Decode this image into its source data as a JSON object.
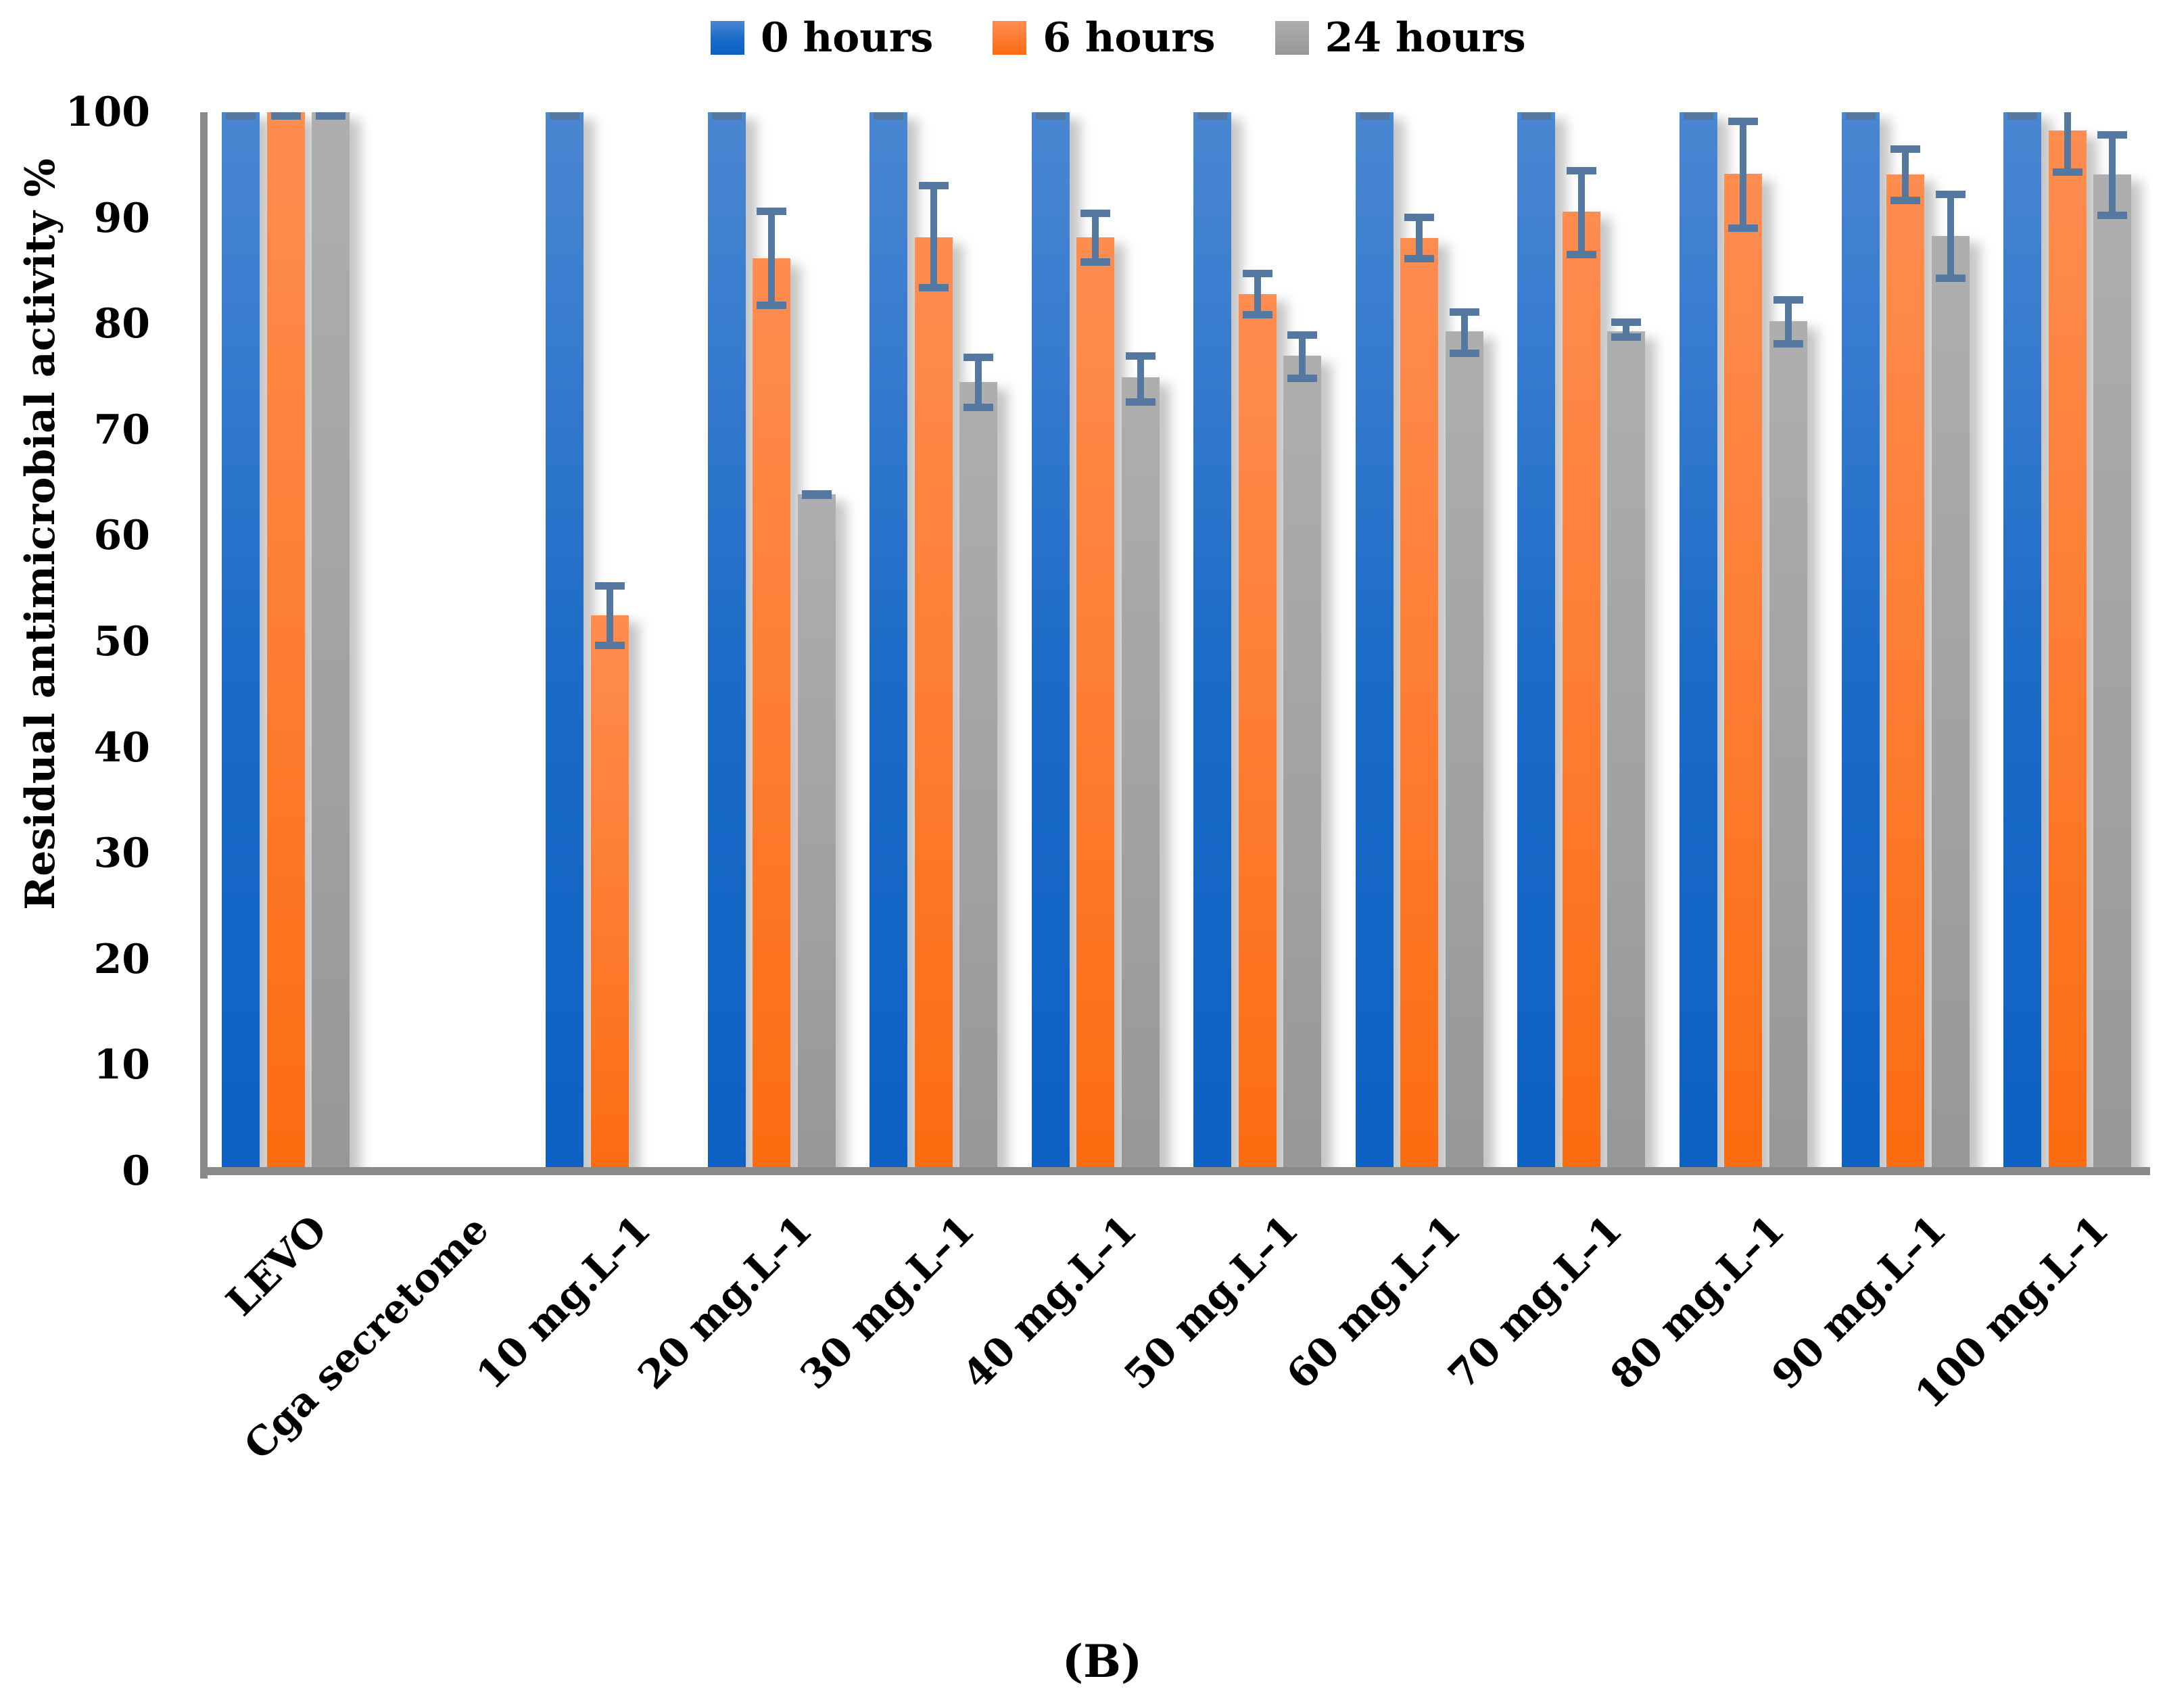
{
  "figure": {
    "caption": "(B)"
  },
  "chart_data": {
    "type": "bar",
    "title": "",
    "xlabel": "",
    "ylabel": "Residual antimicrobial activity %",
    "ylim": [
      0,
      100
    ],
    "yticks": [
      0,
      10,
      20,
      30,
      40,
      50,
      60,
      70,
      80,
      90,
      100
    ],
    "grid": false,
    "legend_position": "top",
    "error_bar_color": "#5578a0",
    "axis_color": "#8a8a8a",
    "categories": [
      "LEVO",
      "Cga secretome",
      "10 mg.L–1",
      "20 mg.L–1",
      "30 mg.L–1",
      "40 mg.L–1",
      "50 mg.L–1",
      "60 mg.L–1",
      "70 mg.L–1",
      "80 mg.L–1",
      "90 mg.L–1",
      "100 mg.L–1"
    ],
    "series": [
      {
        "name": "0 hours",
        "color": "#1e6bc8",
        "values": [
          {
            "v": 100,
            "lo": 0,
            "hi": 0
          },
          null,
          {
            "v": 100,
            "lo": 0,
            "hi": 0
          },
          {
            "v": 100,
            "lo": 0,
            "hi": 0
          },
          {
            "v": 100,
            "lo": 0,
            "hi": 0
          },
          {
            "v": 100,
            "lo": 0,
            "hi": 0
          },
          {
            "v": 100,
            "lo": 0,
            "hi": 0
          },
          {
            "v": 100,
            "lo": 0,
            "hi": 0
          },
          {
            "v": 100,
            "lo": 0,
            "hi": 0
          },
          {
            "v": 100,
            "lo": 0,
            "hi": 0
          },
          {
            "v": 100,
            "lo": 0,
            "hi": 0
          },
          {
            "v": 100,
            "lo": 0,
            "hi": 0
          }
        ]
      },
      {
        "name": "6 hours",
        "color": "#fd7624",
        "values": [
          {
            "v": 100,
            "lo": 0,
            "hi": 0
          },
          null,
          {
            "v": 52.5,
            "lo": 3.2,
            "hi": 3.1
          },
          {
            "v": 86.2,
            "lo": 4.8,
            "hi": 4.8
          },
          {
            "v": 88.2,
            "lo": 5.1,
            "hi": 5.2
          },
          {
            "v": 88.2,
            "lo": 2.7,
            "hi": 2.6
          },
          {
            "v": 82.8,
            "lo": 2.3,
            "hi": 2.3
          },
          {
            "v": 88.1,
            "lo": 2.3,
            "hi": 2.3
          },
          {
            "v": 90.6,
            "lo": 4.4,
            "hi": 4.2
          },
          {
            "v": 94.2,
            "lo": 5.5,
            "hi": 5.3
          },
          {
            "v": 94.1,
            "lo": 2.8,
            "hi": 2.8
          },
          {
            "v": 98.3,
            "lo": 4.3,
            "hi": 2.5
          }
        ]
      },
      {
        "name": "24 hours",
        "color": "#a5a5a5",
        "values": [
          {
            "v": 100,
            "lo": 0,
            "hi": 0
          },
          null,
          null,
          {
            "v": 63.9,
            "lo": 0.4,
            "hi": 0.4
          },
          {
            "v": 74.5,
            "lo": 2.7,
            "hi": 2.7
          },
          {
            "v": 75.0,
            "lo": 2.7,
            "hi": 2.3
          },
          {
            "v": 77.0,
            "lo": 2.5,
            "hi": 2.3
          },
          {
            "v": 79.3,
            "lo": 2.4,
            "hi": 2.2
          },
          {
            "v": 79.3,
            "lo": 0.9,
            "hi": 1.2
          },
          {
            "v": 80.3,
            "lo": 2.5,
            "hi": 2.3
          },
          {
            "v": 88.3,
            "lo": 4.3,
            "hi": 4.3
          },
          {
            "v": 94.1,
            "lo": 4.2,
            "hi": 4.1
          }
        ]
      }
    ]
  }
}
